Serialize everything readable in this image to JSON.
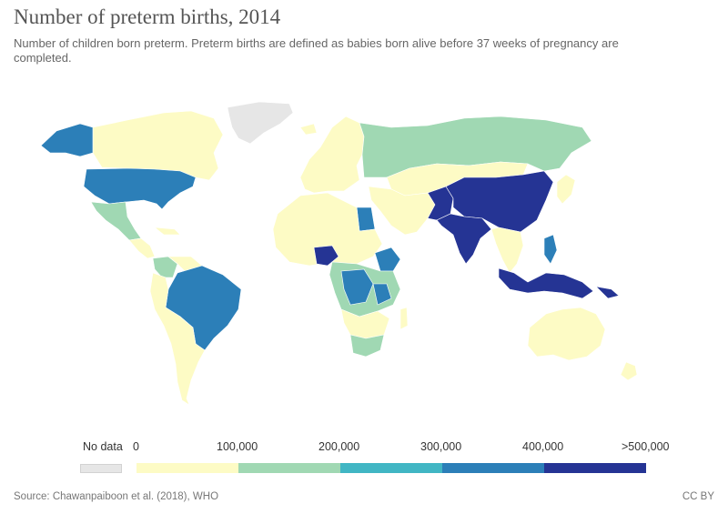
{
  "header": {
    "title": "Number of preterm births, 2014",
    "subtitle": "Number of children born preterm. Preterm births are defined as babies born alive before 37 weeks of pregnancy are completed."
  },
  "legend": {
    "no_data_label": "No data",
    "no_data_color": "#e6e6e6",
    "bins": [
      {
        "label": "0",
        "color": "#fdfbc5"
      },
      {
        "label": "100,000",
        "color": "#a0d8b3"
      },
      {
        "label": "200,000",
        "color": "#41b6c4"
      },
      {
        "label": "300,000",
        "color": "#2c7fb8"
      },
      {
        "label": "400,000",
        "color": "#253494"
      },
      {
        "label": ">500,000",
        "color": ""
      }
    ]
  },
  "regions": [
    {
      "name": "canada",
      "value_bin": "0-100,000",
      "color": "#fdfbc5"
    },
    {
      "name": "greenland",
      "value_bin": "No data",
      "color": "#e6e6e6"
    },
    {
      "name": "alaska-usa",
      "value_bin": "300,000-400,000",
      "color": "#2c7fb8"
    },
    {
      "name": "usa",
      "value_bin": "300,000-400,000",
      "color": "#2c7fb8"
    },
    {
      "name": "mexico",
      "value_bin": "100,000-200,000",
      "color": "#a0d8b3"
    },
    {
      "name": "central-america",
      "value_bin": "0-100,000",
      "color": "#fdfbc5"
    },
    {
      "name": "colombia",
      "value_bin": "100,000-200,000",
      "color": "#a0d8b3"
    },
    {
      "name": "brazil",
      "value_bin": "300,000-400,000",
      "color": "#2c7fb8"
    },
    {
      "name": "south-america-other",
      "value_bin": "0-100,000",
      "color": "#fdfbc5"
    },
    {
      "name": "europe",
      "value_bin": "0-100,000",
      "color": "#fdfbc5"
    },
    {
      "name": "russia",
      "value_bin": "100,000-200,000",
      "color": "#a0d8b3"
    },
    {
      "name": "kazakhstan-mongolia",
      "value_bin": "0-100,000",
      "color": "#fdfbc5"
    },
    {
      "name": "china",
      "value_bin": ">500,000",
      "color": "#253494"
    },
    {
      "name": "india",
      "value_bin": ">500,000",
      "color": "#253494"
    },
    {
      "name": "pakistan",
      "value_bin": ">500,000",
      "color": "#253494"
    },
    {
      "name": "indonesia",
      "value_bin": ">500,000",
      "color": "#253494"
    },
    {
      "name": "philippines",
      "value_bin": "300,000-400,000",
      "color": "#2c7fb8"
    },
    {
      "name": "middle-east",
      "value_bin": "0-100,000",
      "color": "#fdfbc5"
    },
    {
      "name": "egypt",
      "value_bin": "300,000-400,000",
      "color": "#2c7fb8"
    },
    {
      "name": "nigeria",
      "value_bin": ">500,000",
      "color": "#253494"
    },
    {
      "name": "ethiopia",
      "value_bin": "300,000-400,000",
      "color": "#2c7fb8"
    },
    {
      "name": "dr-congo",
      "value_bin": "300,000-400,000",
      "color": "#2c7fb8"
    },
    {
      "name": "tanzania",
      "value_bin": "300,000-400,000",
      "color": "#2c7fb8"
    },
    {
      "name": "africa-other",
      "value_bin": "0-100,000",
      "color": "#fdfbc5"
    },
    {
      "name": "south-africa",
      "value_bin": "100,000-200,000",
      "color": "#a0d8b3"
    },
    {
      "name": "australia",
      "value_bin": "0-100,000",
      "color": "#fdfbc5"
    },
    {
      "name": "japan",
      "value_bin": "0-100,000",
      "color": "#fdfbc5"
    }
  ],
  "footer": {
    "source": "Source: Chawanpaiboon et al. (2018), WHO",
    "license": "CC BY"
  }
}
